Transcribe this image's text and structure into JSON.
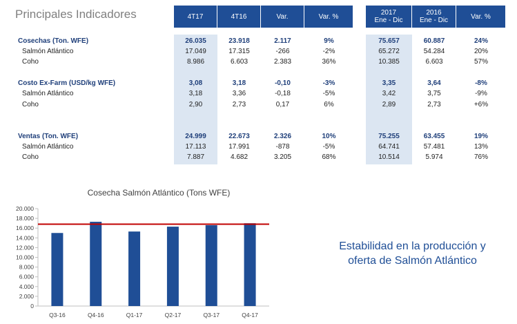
{
  "page_title": "Principales Indicadores",
  "header": {
    "q1": "4T17",
    "q2": "4T16",
    "var": "Var.",
    "varp": "Var. %",
    "y1_top": "2017",
    "y1_bottom": "Ene - Dic",
    "y2_top": "2016",
    "y2_bottom": "Ene - Dic",
    "varp2": "Var. %"
  },
  "rows": [
    {
      "label": "Cosechas (Ton. WFE)",
      "bold": true,
      "q1": "26.035",
      "q2": "23.918",
      "var": "2.117",
      "varp": "9%",
      "y1": "75.657",
      "y2": "60.887",
      "varp2": "24%"
    },
    {
      "label": "Salmón Atlántico",
      "bold": false,
      "q1": "17.049",
      "q2": "17.315",
      "var": "-266",
      "varp": "-2%",
      "y1": "65.272",
      "y2": "54.284",
      "varp2": "20%"
    },
    {
      "label": "Coho",
      "bold": false,
      "q1": "8.986",
      "q2": "6.603",
      "var": "2.383",
      "varp": "36%",
      "y1": "10.385",
      "y2": "6.603",
      "varp2": "57%"
    },
    {
      "label": "Costo Ex-Farm (USD/kg WFE)",
      "bold": true,
      "q1": "3,08",
      "q2": "3,18",
      "var": "-0,10",
      "varp": "-3%",
      "y1": "3,35",
      "y2": "3,64",
      "varp2": "-8%"
    },
    {
      "label": "Salmón Atlántico",
      "bold": false,
      "q1": "3,18",
      "q2": "3,36",
      "var": "-0,18",
      "varp": "-5%",
      "y1": "3,42",
      "y2": "3,75",
      "varp2": "-9%"
    },
    {
      "label": "Coho",
      "bold": false,
      "q1": "2,90",
      "q2": "2,73",
      "var": "0,17",
      "varp": "6%",
      "y1": "2,89",
      "y2": "2,73",
      "varp2": "+6%"
    },
    {
      "label": "Ventas (Ton. WFE)",
      "bold": true,
      "q1": "24.999",
      "q2": "22.673",
      "var": "2.326",
      "varp": "10%",
      "y1": "75.255",
      "y2": "63.455",
      "varp2": "19%"
    },
    {
      "label": "Salmón Atlántico",
      "bold": false,
      "q1": "17.113",
      "q2": "17.991",
      "var": "-878",
      "varp": "-5%",
      "y1": "64.741",
      "y2": "57.481",
      "varp2": "13%"
    },
    {
      "label": "Coho",
      "bold": false,
      "q1": "7.887",
      "q2": "4.682",
      "var": "3.205",
      "varp": "68%",
      "y1": "10.514",
      "y2": "5.974",
      "varp2": "76%"
    }
  ],
  "callout_line1": "Estabilidad en la producción y",
  "callout_line2": "oferta de Salmón Atlántico",
  "colors": {
    "header_blue": "#1f4e96",
    "shade": "#dce6f2",
    "bar": "#1f4e96",
    "reference_line": "#c00000"
  },
  "chart_data": {
    "type": "bar",
    "title": "Cosecha Salmón Atlántico (Tons WFE)",
    "categories": [
      "Q3-16",
      "Q4-16",
      "Q1-17",
      "Q2-17",
      "Q3-17",
      "Q4-17"
    ],
    "values": [
      15000,
      17300,
      15300,
      16300,
      16600,
      17000
    ],
    "ylim": [
      0,
      20000
    ],
    "yticks": [
      "0",
      "2.000",
      "4.000",
      "6.000",
      "8.000",
      "10.000",
      "12.000",
      "14.000",
      "16.000",
      "18.000",
      "20.000"
    ],
    "reference_line": 16800,
    "grid": false,
    "legend": "none"
  }
}
